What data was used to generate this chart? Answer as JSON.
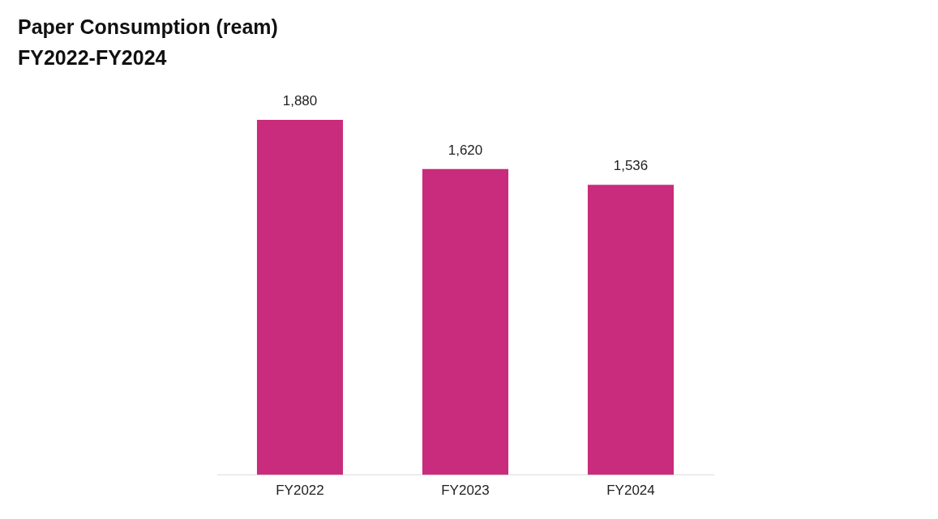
{
  "chart_data": {
    "type": "bar",
    "title": "Paper Consumption (ream)",
    "subtitle": "FY2022-FY2024",
    "categories": [
      "FY2022",
      "FY2023",
      "FY2024"
    ],
    "values": [
      1880,
      1620,
      1536
    ],
    "value_labels": [
      "1,880",
      "1,620",
      "1,536"
    ],
    "color": "#c92c7c",
    "grid": false,
    "legend": false,
    "tick_labels": "x"
  }
}
